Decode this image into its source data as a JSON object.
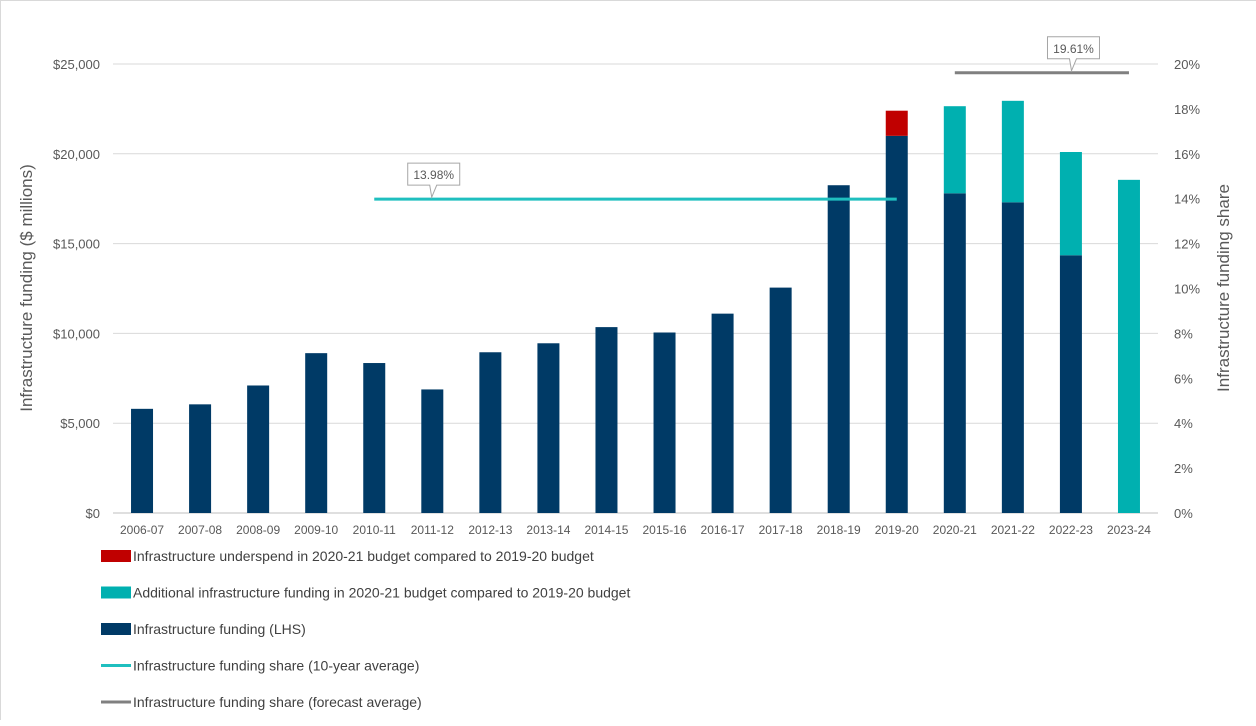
{
  "chart_data": {
    "type": "bar",
    "categories": [
      "2006-07",
      "2007-08",
      "2008-09",
      "2009-10",
      "2010-11",
      "2011-12",
      "2012-13",
      "2013-14",
      "2014-15",
      "2015-16",
      "2016-17",
      "2017-18",
      "2018-19",
      "2019-20",
      "2020-21",
      "2021-22",
      "2022-23",
      "2023-24"
    ],
    "series": [
      {
        "name": "Infrastructure funding (LHS)",
        "kind": "stacked-bar",
        "color": "#003a66",
        "values": [
          5800,
          6050,
          7100,
          8900,
          8350,
          6880,
          8950,
          9450,
          10350,
          10050,
          11100,
          12550,
          18250,
          21000,
          17800,
          17300,
          14350,
          0
        ]
      },
      {
        "name": "Infrastructure underspend in 2020-21 budget compared to 2019-20 budget",
        "kind": "stacked-bar",
        "color": "#c00000",
        "values": [
          0,
          0,
          0,
          0,
          0,
          0,
          0,
          0,
          0,
          0,
          0,
          0,
          0,
          1400,
          0,
          0,
          0,
          0
        ]
      },
      {
        "name": "Additional infrastructure funding in 2020-21 budget compared to 2019-20 budget",
        "kind": "stacked-bar",
        "color": "#00b0b0",
        "values": [
          0,
          0,
          0,
          0,
          0,
          0,
          0,
          0,
          0,
          0,
          0,
          0,
          0,
          0,
          4850,
          5650,
          5750,
          18550
        ]
      },
      {
        "name": "Infrastructure funding share (10-year average)",
        "kind": "line",
        "axis": "right",
        "color": "#1fbfbf",
        "value": 0.1398,
        "from": "2010-11",
        "to": "2019-20",
        "label": "13.98%"
      },
      {
        "name": "Infrastructure funding share (forecast average)",
        "kind": "line",
        "axis": "right",
        "color": "#808080",
        "value": 0.1961,
        "from": "2020-21",
        "to": "2023-24",
        "label": "19.61%"
      }
    ],
    "ylabel": "Infrastructure funding ($ millions)",
    "y2label": "Infrastructure funding share",
    "ylim": [
      0,
      25000
    ],
    "yticks": [
      "$0",
      "$5,000",
      "$10,000",
      "$15,000",
      "$20,000",
      "$25,000"
    ],
    "y2lim": [
      0,
      0.2
    ],
    "y2ticks": [
      "0%",
      "2%",
      "4%",
      "6%",
      "8%",
      "10%",
      "12%",
      "14%",
      "16%",
      "18%",
      "20%"
    ],
    "legend": [
      "Infrastructure underspend in 2020-21 budget compared to 2019-20 budget",
      "Additional infrastructure funding in 2020-21 budget compared to 2019-20 budget",
      "Infrastructure funding (LHS)",
      "Infrastructure funding share (10-year average)",
      "Infrastructure funding share (forecast average)"
    ],
    "legend_placement": "bottom-left",
    "grid": true
  }
}
